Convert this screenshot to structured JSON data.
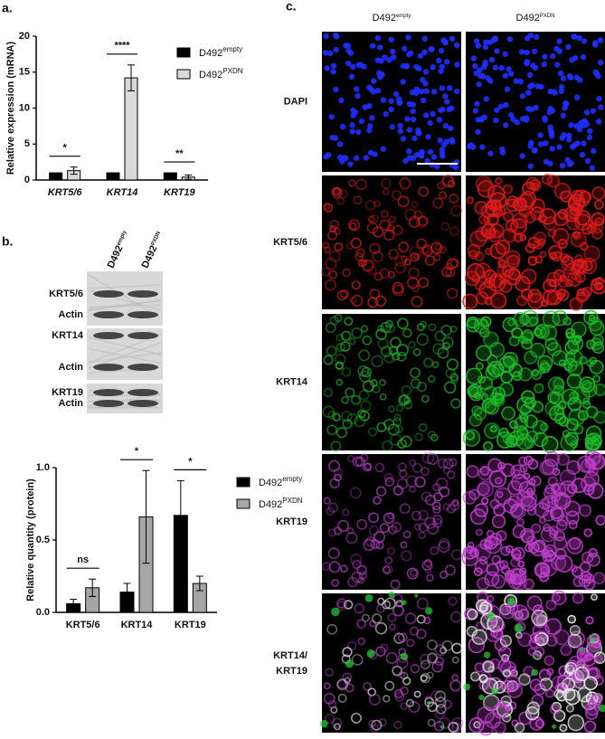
{
  "panel_labels": [
    "a.",
    "b.",
    "c."
  ],
  "chart_data": [
    {
      "type": "bar",
      "ylabel": "Relative expression (mRNA)",
      "categories": [
        "KRT5/6",
        "KRT14",
        "KRT19"
      ],
      "series": [
        {
          "name": "D492empty",
          "color": "#000000",
          "values": [
            1,
            1,
            1
          ]
        },
        {
          "name": "D492PXDN",
          "color": "#d9d9d9",
          "values": [
            1.3,
            14.2,
            0.4
          ],
          "errors": [
            0.5,
            1.8,
            0.3
          ]
        }
      ],
      "ylim": [
        0,
        20
      ],
      "yticks": [
        0,
        5,
        10,
        15,
        20
      ],
      "annotations": [
        "*",
        "****",
        "**"
      ],
      "legend": "upper right"
    },
    {
      "type": "bar",
      "ylabel": "Relative quantity (protein)",
      "categories": [
        "KRT5/6",
        "KRT14",
        "KRT19"
      ],
      "series": [
        {
          "name": "D492empty",
          "color": "#000000",
          "values": [
            0.06,
            0.14,
            0.67
          ],
          "errors": [
            0.03,
            0.06,
            0.24
          ]
        },
        {
          "name": "D492PXDN",
          "color": "#a6a6a6",
          "values": [
            0.17,
            0.66,
            0.2
          ],
          "errors": [
            0.06,
            0.32,
            0.05
          ]
        }
      ],
      "ylim": [
        0,
        1.0
      ],
      "yticks": [
        {
          "value": 0,
          "label": "0.0"
        },
        {
          "value": 0.5,
          "label": "0.5"
        },
        {
          "value": 1.0,
          "label": "1.0"
        }
      ],
      "annotations": [
        "ns",
        "*",
        "*"
      ],
      "legend": "upper right"
    }
  ],
  "blot": {
    "columns": [
      "D492empty",
      "D492PXDN"
    ],
    "bands": [
      "KRT5/6",
      "Actin",
      "KRT14",
      "Actin",
      "KRT19",
      "Actin"
    ]
  },
  "microscopy": {
    "columns": [
      "D492empty",
      "D492PXDN"
    ],
    "rows": [
      {
        "label": "DAPI",
        "color": "#2e2e9e"
      },
      {
        "label": "KRT5/6",
        "color": "#e0201f"
      },
      {
        "label": "KRT14",
        "color": "#17a33c"
      },
      {
        "label": "KRT19",
        "color": "#c23fc2"
      },
      {
        "label_parts": [
          {
            "text": "KRT14/",
            "color": "#17a33c"
          },
          {
            "text": "KRT19",
            "color": "#c23fc2"
          }
        ]
      }
    ]
  }
}
